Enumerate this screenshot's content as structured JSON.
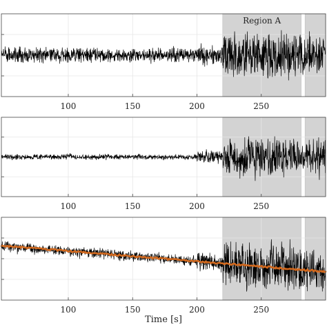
{
  "chart_data": [
    {
      "type": "line",
      "panel": "top",
      "title": "",
      "xlabel": "",
      "ylabel": "",
      "xlim": [
        48,
        300
      ],
      "xticks": [
        100,
        150,
        200,
        250
      ],
      "x_tick_labels": [
        "100",
        "150",
        "200",
        "250"
      ],
      "grid": true,
      "shaded_regions": [
        {
          "label": "Region A",
          "x_start": 220,
          "x_end": 281
        },
        {
          "label": "",
          "x_start": 284,
          "x_end": 300
        }
      ],
      "series": [
        {
          "color": "#000000",
          "segments": [
            {
              "x_start": 48,
              "x_end": 200,
              "amplitude": 0.32
            },
            {
              "x_start": 200,
              "x_end": 220,
              "amplitude": 0.45
            },
            {
              "x_start": 220,
              "x_end": 300,
              "amplitude": 0.9
            }
          ]
        }
      ]
    },
    {
      "type": "line",
      "panel": "middle",
      "title": "",
      "xlabel": "",
      "ylabel": "",
      "xlim": [
        48,
        300
      ],
      "xticks": [
        100,
        150,
        200,
        250
      ],
      "x_tick_labels": [
        "100",
        "150",
        "200",
        "250"
      ],
      "grid": true,
      "shaded_regions": [
        {
          "label": "",
          "x_start": 220,
          "x_end": 281
        },
        {
          "label": "",
          "x_start": 284,
          "x_end": 300
        }
      ],
      "series": [
        {
          "color": "#000000",
          "segments": [
            {
              "x_start": 48,
              "x_end": 200,
              "amplitude": 0.12
            },
            {
              "x_start": 200,
              "x_end": 220,
              "amplitude": 0.3
            },
            {
              "x_start": 220,
              "x_end": 300,
              "amplitude": 0.85
            }
          ]
        }
      ]
    },
    {
      "type": "line",
      "panel": "bottom",
      "title": "",
      "xlabel": "Time [s]",
      "ylabel": "",
      "xlim": [
        48,
        300
      ],
      "xticks": [
        100,
        150,
        200,
        250
      ],
      "x_tick_labels": [
        "100",
        "150",
        "200",
        "250"
      ],
      "grid": true,
      "shaded_regions": [
        {
          "label": "",
          "x_start": 220,
          "x_end": 281
        },
        {
          "label": "",
          "x_start": 284,
          "x_end": 300
        }
      ],
      "series": [
        {
          "color": "#000000",
          "segments": [
            {
              "x_start": 48,
              "x_end": 200,
              "amplitude": 0.22
            },
            {
              "x_start": 200,
              "x_end": 220,
              "amplitude": 0.4
            },
            {
              "x_start": 220,
              "x_end": 300,
              "amplitude": 0.95
            }
          ]
        },
        {
          "color": "#d2691e",
          "trend": {
            "x_start": 48,
            "x_end": 300,
            "y_start": 0.6,
            "y_end": -0.6
          }
        }
      ]
    }
  ]
}
